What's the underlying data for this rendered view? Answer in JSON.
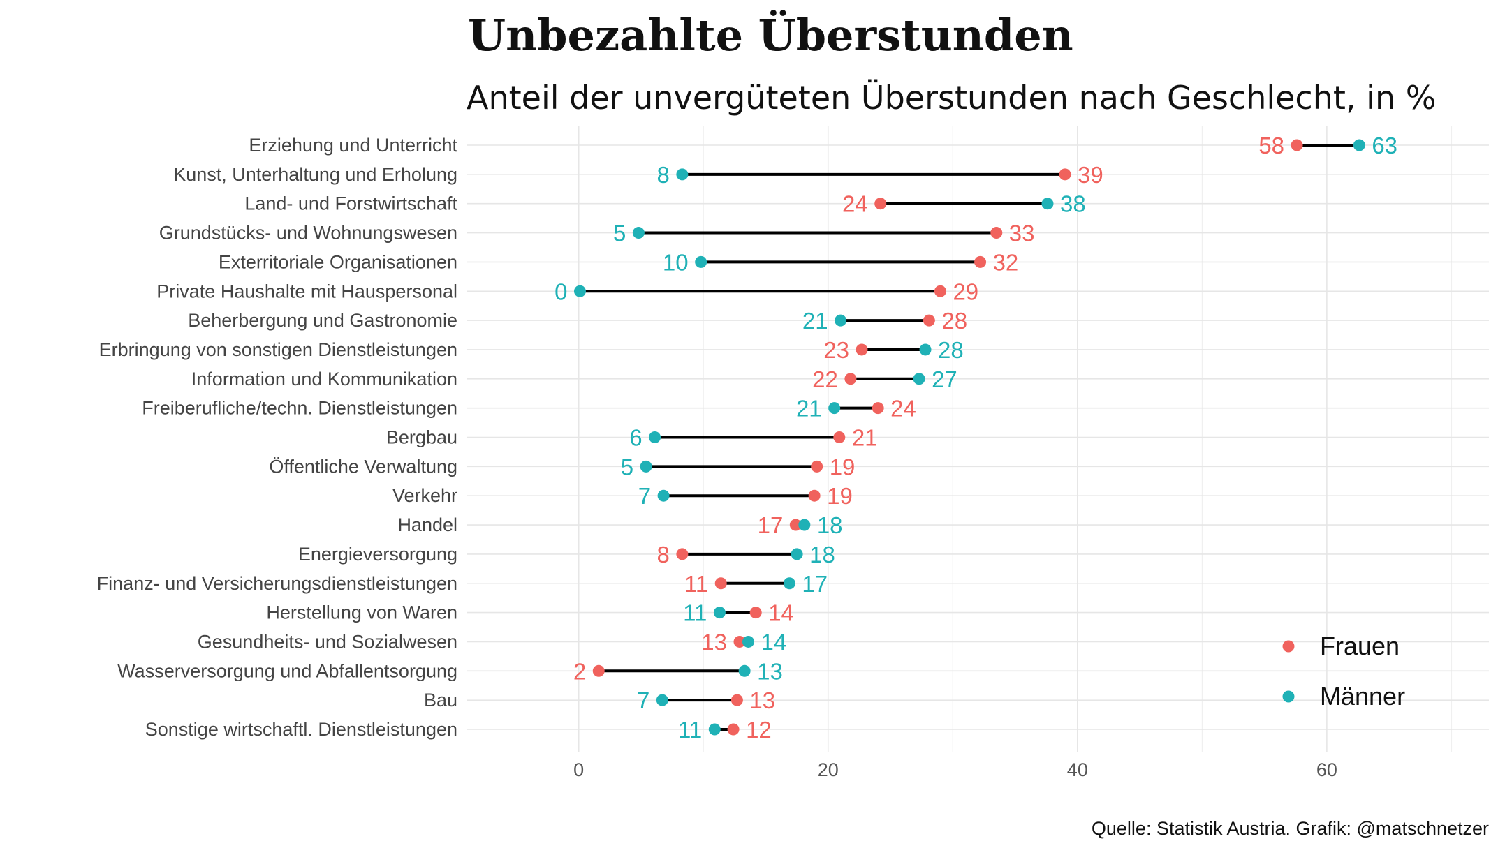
{
  "chart_data": {
    "type": "dumbbell",
    "title": "Unbezahlte Überstunden",
    "subtitle": "Anteil der unvergüteten Überstunden nach Geschlecht, in %",
    "caption": "Quelle: Statistik Austria. Grafik: @matschnetzer",
    "xlim": [
      -9,
      73
    ],
    "x_ticks": [
      0,
      20,
      40,
      60
    ],
    "grid": true,
    "legend_position": "bottom-right",
    "colors": {
      "Frauen": "#F0625D",
      "Männer": "#1FB1B6",
      "segment": "#000000"
    },
    "series": [
      {
        "name": "Frauen"
      },
      {
        "name": "Männer"
      }
    ],
    "categories": [
      "Erziehung und Unterricht",
      "Kunst, Unterhaltung und Erholung",
      "Land- und Forstwirtschaft",
      "Grundstücks- und Wohnungswesen",
      "Exterritoriale Organisationen",
      "Private Haushalte mit Hauspersonal",
      "Beherbergung und Gastronomie",
      "Erbringung von sonstigen Dienstleistungen",
      "Information und Kommunikation",
      "Freiberufliche/techn. Dienstleistungen",
      "Bergbau",
      "Öffentliche Verwaltung",
      "Verkehr",
      "Handel",
      "Energieversorgung",
      "Finanz- und Versicherungsdienstleistungen",
      "Herstellung von Waren",
      "Gesundheits- und Sozialwesen",
      "Wasserversorgung und Abfallentsorgung",
      "Bau",
      "Sonstige wirtschaftl. Dienstleistungen"
    ],
    "frauen": [
      57.6,
      39.0,
      24.2,
      33.5,
      32.2,
      29.0,
      28.1,
      22.7,
      21.8,
      24.0,
      20.9,
      19.1,
      18.9,
      17.4,
      8.3,
      11.4,
      14.2,
      12.9,
      1.6,
      12.7,
      12.4
    ],
    "maenner": [
      62.6,
      8.3,
      37.6,
      4.8,
      9.8,
      0.1,
      21.0,
      27.8,
      27.3,
      20.5,
      6.1,
      5.4,
      6.8,
      18.1,
      17.5,
      16.9,
      11.3,
      13.6,
      13.3,
      6.7,
      10.9
    ],
    "frauen_labels": [
      "58",
      "39",
      "24",
      "33",
      "32",
      "29",
      "28",
      "23",
      "22",
      "24",
      "21",
      "19",
      "19",
      "17",
      "8",
      "11",
      "14",
      "13",
      "2",
      "13",
      "12"
    ],
    "maenner_labels": [
      "63",
      "8",
      "38",
      "5",
      "10",
      "0",
      "21",
      "28",
      "27",
      "21",
      "6",
      "5",
      "7",
      "18",
      "18",
      "17",
      "11",
      "14",
      "13",
      "7",
      "11"
    ]
  }
}
